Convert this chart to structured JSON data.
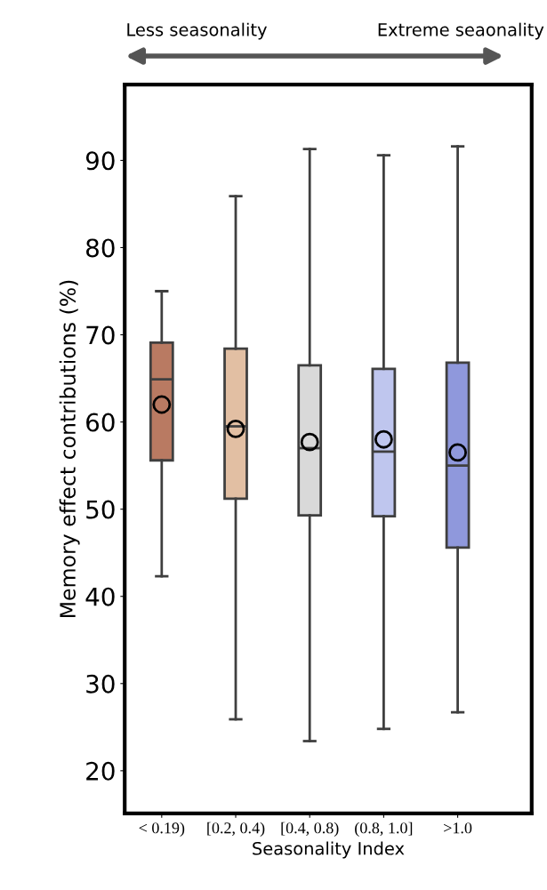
{
  "chart_data": {
    "type": "box",
    "xlabel": "Seasonality Index",
    "ylabel": "Memory effect contributions (%)",
    "annotations": [
      "Less seasonality",
      "Extreme seaonality"
    ],
    "categories": [
      "< 0.19)",
      "[0.2, 0.4)",
      "[0.4, 0.8)",
      "(0.8, 1.0]",
      ">1.0"
    ],
    "colors": [
      "#b97a62",
      "#e2bfa3",
      "#d9d9d9",
      "#bfc6ee",
      "#8f98dc"
    ],
    "boxes": [
      {
        "low": 42.3,
        "q1": 55.6,
        "median": 64.9,
        "q3": 69.1,
        "high": 75.0,
        "mean": 62.0
      },
      {
        "low": 25.9,
        "q1": 51.2,
        "median": 59.5,
        "q3": 68.4,
        "high": 85.9,
        "mean": 59.2
      },
      {
        "low": 23.4,
        "q1": 49.3,
        "median": 57.0,
        "q3": 66.5,
        "high": 91.3,
        "mean": 57.7
      },
      {
        "low": 24.8,
        "q1": 49.2,
        "median": 56.6,
        "q3": 66.1,
        "high": 90.6,
        "mean": 58.0
      },
      {
        "low": 26.7,
        "q1": 45.6,
        "median": 55.0,
        "q3": 66.8,
        "high": 91.6,
        "mean": 56.5
      }
    ],
    "ylim": [
      15.1,
      98.7
    ],
    "yticks": [
      20,
      30,
      40,
      50,
      60,
      70,
      80,
      90
    ],
    "grid": false
  }
}
